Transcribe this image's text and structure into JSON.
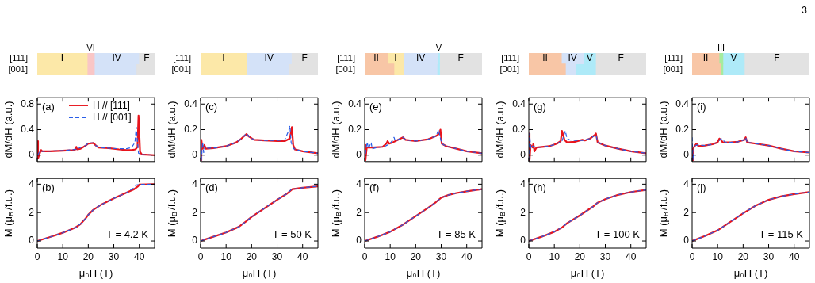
{
  "chart_data": [
    {
      "type": "bar",
      "orientation": "horizontal",
      "stacked": true,
      "categories": [
        "[111]",
        "[001]"
      ],
      "xlim": [
        0,
        46
      ],
      "tick_labels": "y",
      "annotations": [
        "3"
      ],
      "series": [
        {
          "name": "I",
          "color": "#fce8a8",
          "values": [
            19.6,
            19.6
          ]
        },
        {
          "name": "VI",
          "color": "#f9c6c6",
          "values": [
            2.8,
            2.8
          ]
        },
        {
          "name": "IV",
          "color": "#d4e2f8",
          "values": [
            17.4,
            16.4
          ]
        },
        {
          "name": "F",
          "color": "#e2e2e2",
          "values": [
            6.2,
            7.2
          ]
        }
      ]
    },
    {
      "type": "line",
      "xlim": [
        0,
        46
      ],
      "xticks": [
        0,
        10,
        20,
        30,
        40
      ],
      "ylim": [
        -0.1,
        0.9
      ],
      "yticks": [
        0,
        0.4,
        0.8
      ],
      "tick_labels": "y",
      "ylabel": "dM/dH (a.u.)",
      "annotations": [
        "(a)"
      ],
      "legend": "top right",
      "series": [
        {
          "name": "H // [111]",
          "color": "#e8141c",
          "line_style": "solid",
          "x": [
            0,
            0.3,
            1,
            1.5,
            2,
            5,
            10,
            14,
            15,
            15.3,
            15.6,
            17,
            19,
            20,
            22,
            23,
            24,
            28,
            32,
            35,
            37,
            38.5,
            39.3,
            39.7,
            40,
            40.3,
            41,
            46
          ],
          "values": [
            0.22,
            -0.05,
            0.03,
            0.08,
            0.06,
            0.06,
            0.07,
            0.08,
            0.09,
            0.13,
            0.09,
            0.1,
            0.15,
            0.18,
            0.19,
            0.15,
            0.12,
            0.11,
            0.09,
            0.08,
            0.08,
            0.09,
            0.13,
            0.62,
            0.35,
            0.05,
            0.01,
            0
          ]
        },
        {
          "name": "H // [001]",
          "color": "#2a5ee8",
          "line_style": "dashed",
          "x": [
            0,
            0.5,
            1,
            2,
            10,
            15,
            19,
            20,
            22,
            23,
            24,
            28,
            32,
            35,
            37,
            38.3,
            38.8,
            39.2,
            39.7,
            40.5,
            46
          ],
          "values": [
            0,
            0.02,
            0.07,
            0.06,
            0.07,
            0.09,
            0.15,
            0.19,
            0.19,
            0.15,
            0.12,
            0.11,
            0.1,
            0.1,
            0.12,
            0.2,
            0.44,
            0.25,
            0.03,
            0.01,
            0
          ]
        }
      ]
    },
    {
      "type": "line",
      "xlim": [
        0,
        46
      ],
      "xticks": [
        0,
        10,
        20,
        30,
        40
      ],
      "ylim": [
        -0.5,
        4.4
      ],
      "yticks": [
        0,
        2,
        4
      ],
      "xlabel": "μ₀H (T)",
      "ylabel": "M (μ$_{B}$/f.u.)",
      "annotations": [
        "(b)",
        "T = 4.2 K"
      ],
      "series": [
        {
          "color": "#e8141c",
          "line_style": "solid",
          "x": [
            0,
            5,
            10,
            15,
            17,
            19,
            20,
            22,
            25,
            30,
            35,
            38,
            39.5,
            40,
            46
          ],
          "values": [
            0,
            0.28,
            0.58,
            0.95,
            1.2,
            1.6,
            1.85,
            2.2,
            2.55,
            3,
            3.4,
            3.65,
            3.85,
            3.97,
            4
          ]
        },
        {
          "color": "#2a5ee8",
          "line_style": "dashed",
          "x": [
            0,
            5,
            10,
            15,
            17,
            19,
            20,
            22,
            25,
            30,
            35,
            38,
            39,
            40,
            46
          ],
          "values": [
            0,
            0.28,
            0.58,
            0.95,
            1.2,
            1.6,
            1.85,
            2.2,
            2.55,
            3,
            3.4,
            3.75,
            3.95,
            3.98,
            4
          ]
        }
      ]
    },
    {
      "type": "bar",
      "orientation": "horizontal",
      "stacked": true,
      "categories": [
        "[111]",
        "[001]"
      ],
      "xlim": [
        0,
        46
      ],
      "tick_labels": "y",
      "series": [
        {
          "name": "I",
          "color": "#fce8a8",
          "values": [
            18,
            18
          ]
        },
        {
          "name": "IV",
          "color": "#d4e2f8",
          "values": [
            17.6,
            16.7
          ]
        },
        {
          "name": "F",
          "color": "#e2e2e2",
          "values": [
            10.4,
            11.3
          ]
        }
      ]
    },
    {
      "type": "line",
      "xlim": [
        0,
        46
      ],
      "xticks": [
        0,
        10,
        20,
        30,
        40
      ],
      "ylim": [
        -0.05,
        0.45
      ],
      "yticks": [
        0,
        0.2,
        0.4
      ],
      "tick_labels": "y",
      "ylabel": "dM/dH (a.u.)",
      "annotations": [
        "(c)"
      ],
      "series": [
        {
          "color": "#e8141c",
          "line_style": "solid",
          "x": [
            0,
            0.3,
            0.8,
            1.5,
            2,
            5,
            10,
            14,
            16,
            18,
            19,
            21,
            25,
            30,
            33,
            35,
            35.8,
            36.3,
            37,
            40,
            46
          ],
          "values": [
            -0.04,
            0.12,
            0.05,
            0.08,
            0.05,
            0.055,
            0.07,
            0.1,
            0.13,
            0.165,
            0.145,
            0.12,
            0.115,
            0.11,
            0.11,
            0.13,
            0.22,
            0.08,
            0.045,
            0.03,
            0.015
          ]
        },
        {
          "color": "#2a5ee8",
          "line_style": "dashed",
          "x": [
            0,
            0.3,
            0.8,
            1.2,
            1.7,
            2.5,
            5,
            10,
            14,
            16,
            18,
            19,
            21,
            25,
            30,
            33,
            34.5,
            35,
            35.5,
            36.5,
            40,
            46
          ],
          "values": [
            0.21,
            -0.04,
            0.1,
            0.02,
            0.07,
            0.055,
            0.055,
            0.07,
            0.1,
            0.13,
            0.17,
            0.145,
            0.12,
            0.115,
            0.115,
            0.12,
            0.19,
            0.23,
            0.1,
            0.05,
            0.03,
            0.015
          ]
        }
      ]
    },
    {
      "type": "line",
      "xlim": [
        0,
        46
      ],
      "xticks": [
        0,
        10,
        20,
        30,
        40
      ],
      "ylim": [
        -0.5,
        4.4
      ],
      "yticks": [
        0,
        2,
        4
      ],
      "xlabel": "μ₀H (T)",
      "ylabel": "M (μ$_{B}$/f.u.)",
      "annotations": [
        "(d)",
        "T = 50 K"
      ],
      "series": [
        {
          "color": "#e8141c",
          "line_style": "solid",
          "x": [
            0,
            5,
            10,
            15,
            18,
            20,
            25,
            30,
            34,
            36,
            40,
            46
          ],
          "values": [
            0,
            0.3,
            0.6,
            1,
            1.4,
            1.7,
            2.3,
            2.9,
            3.35,
            3.65,
            3.75,
            3.85
          ]
        },
        {
          "color": "#2a5ee8",
          "line_style": "dashed",
          "x": [
            0,
            5,
            10,
            15,
            18,
            20,
            25,
            30,
            34,
            35.5,
            40,
            46
          ],
          "values": [
            0,
            0.3,
            0.6,
            1,
            1.4,
            1.7,
            2.3,
            2.9,
            3.35,
            3.62,
            3.75,
            3.85
          ]
        }
      ]
    },
    {
      "type": "bar",
      "orientation": "horizontal",
      "stacked": true,
      "categories": [
        "[111]",
        "[001]"
      ],
      "xlim": [
        0,
        46
      ],
      "tick_labels": "y",
      "series": [
        {
          "name": "II",
          "color": "#f8c6a6",
          "values": [
            9,
            11.5
          ]
        },
        {
          "name": "I",
          "color": "#fce8a8",
          "values": [
            6.2,
            3.7
          ]
        },
        {
          "name": "IV",
          "color": "#d4e2f8",
          "values": [
            13.5,
            13.2
          ]
        },
        {
          "name": "V",
          "color": "#aeeaf8",
          "values": [
            0.7,
            1
          ]
        },
        {
          "name": "F",
          "color": "#e2e2e2",
          "values": [
            16.6,
            16.6
          ]
        }
      ]
    },
    {
      "type": "line",
      "xlim": [
        0,
        46
      ],
      "xticks": [
        0,
        10,
        20,
        30,
        40
      ],
      "ylim": [
        -0.05,
        0.45
      ],
      "yticks": [
        0,
        0.2,
        0.4
      ],
      "tick_labels": "y",
      "ylabel": "dM/dH (a.u.)",
      "annotations": [
        "(e)"
      ],
      "series": [
        {
          "color": "#e8141c",
          "line_style": "solid",
          "x": [
            0,
            0.3,
            0.8,
            3,
            7,
            8.5,
            9,
            9.6,
            11,
            13,
            15,
            16,
            20,
            25,
            28,
            29.3,
            29.7,
            30.2,
            32,
            36,
            40,
            46
          ],
          "values": [
            0.08,
            -0.04,
            0.06,
            0.06,
            0.065,
            0.09,
            0.11,
            0.09,
            0.1,
            0.12,
            0.14,
            0.12,
            0.11,
            0.125,
            0.15,
            0.17,
            0.2,
            0.09,
            0.07,
            0.05,
            0.03,
            0.015
          ]
        },
        {
          "color": "#2a5ee8",
          "line_style": "dashed",
          "x": [
            0,
            0.5,
            1,
            1.5,
            2.5,
            3,
            5,
            8,
            10,
            11,
            11.5,
            12,
            13,
            15,
            16,
            20,
            25,
            28,
            29,
            29.5,
            30.2,
            32,
            36,
            40,
            46
          ],
          "values": [
            -0.04,
            0.05,
            0.1,
            0.05,
            0.1,
            0.05,
            0.06,
            0.07,
            0.09,
            0.12,
            0.14,
            0.11,
            0.12,
            0.14,
            0.12,
            0.11,
            0.125,
            0.15,
            0.2,
            0.15,
            0.09,
            0.07,
            0.05,
            0.03,
            0.015
          ]
        }
      ]
    },
    {
      "type": "line",
      "xlim": [
        0,
        46
      ],
      "xticks": [
        0,
        10,
        20,
        30,
        40
      ],
      "ylim": [
        -0.5,
        4.4
      ],
      "yticks": [
        0,
        2,
        4
      ],
      "xlabel": "μ₀H (T)",
      "ylabel": "M (μ$_{B}$/f.u.)",
      "annotations": [
        "(f)",
        "T = 85 K"
      ],
      "series": [
        {
          "color": "#e8141c",
          "line_style": "solid",
          "x": [
            0,
            5,
            10,
            15,
            20,
            25,
            28,
            30,
            33,
            36,
            40,
            46
          ],
          "values": [
            0,
            0.3,
            0.65,
            1.15,
            1.75,
            2.35,
            2.75,
            3.05,
            3.25,
            3.38,
            3.5,
            3.65
          ]
        },
        {
          "color": "#2a5ee8",
          "line_style": "dashed",
          "x": [
            0,
            5,
            10,
            15,
            20,
            25,
            28,
            30,
            33,
            36,
            40,
            46
          ],
          "values": [
            0,
            0.3,
            0.65,
            1.15,
            1.75,
            2.35,
            2.75,
            3.05,
            3.25,
            3.38,
            3.5,
            3.65
          ]
        }
      ]
    },
    {
      "type": "bar",
      "orientation": "horizontal",
      "stacked": true,
      "categories": [
        "[111]",
        "[001]"
      ],
      "xlim": [
        0,
        46
      ],
      "tick_labels": "y",
      "series": [
        {
          "name": "II",
          "color": "#f8c6a6",
          "values": [
            12.8,
            14.4
          ]
        },
        {
          "name": "IV",
          "color": "#d4e2f8",
          "values": [
            8.7,
            4.1
          ]
        },
        {
          "name": "V",
          "color": "#aeeaf8",
          "values": [
            4.7,
            7.7
          ]
        },
        {
          "name": "F",
          "color": "#e2e2e2",
          "values": [
            19.8,
            19.8
          ]
        }
      ]
    },
    {
      "type": "line",
      "xlim": [
        0,
        46
      ],
      "xticks": [
        0,
        10,
        20,
        30,
        40
      ],
      "ylim": [
        -0.05,
        0.45
      ],
      "yticks": [
        0,
        0.2,
        0.4
      ],
      "tick_labels": "y",
      "ylabel": "dM/dH (a.u.)",
      "annotations": [
        "(g)"
      ],
      "series": [
        {
          "color": "#e8141c",
          "line_style": "solid",
          "x": [
            0,
            0.3,
            0.7,
            1.5,
            1.8,
            2.2,
            3,
            8,
            11,
            12.5,
            13,
            14,
            15,
            18,
            21,
            22,
            24,
            26,
            26.3,
            27,
            30,
            35,
            40,
            46
          ],
          "values": [
            0.17,
            -0.04,
            0.08,
            0.06,
            0.09,
            0.03,
            0.06,
            0.07,
            0.09,
            0.11,
            0.19,
            0.12,
            0.1,
            0.105,
            0.12,
            0.115,
            0.13,
            0.16,
            0.17,
            0.1,
            0.075,
            0.05,
            0.03,
            0.015
          ]
        },
        {
          "color": "#2a5ee8",
          "line_style": "dashed",
          "x": [
            0,
            0.3,
            0.8,
            1.5,
            3,
            8,
            11,
            13,
            14.3,
            15,
            16,
            18,
            21,
            24,
            26,
            26.4,
            27,
            30,
            35,
            40,
            46
          ],
          "values": [
            -0.04,
            0.17,
            0.05,
            0.07,
            0.06,
            0.07,
            0.09,
            0.11,
            0.19,
            0.13,
            0.12,
            0.115,
            0.115,
            0.13,
            0.155,
            0.16,
            0.1,
            0.075,
            0.05,
            0.03,
            0.015
          ]
        }
      ]
    },
    {
      "type": "line",
      "xlim": [
        0,
        46
      ],
      "xticks": [
        0,
        10,
        20,
        30,
        40
      ],
      "ylim": [
        -0.5,
        4.4
      ],
      "yticks": [
        0,
        2,
        4
      ],
      "xlabel": "μ₀H (T)",
      "ylabel": "M (μ$_{B}$/f.u.)",
      "annotations": [
        "(h)",
        "T = 100 K"
      ],
      "series": [
        {
          "color": "#e8141c",
          "line_style": "solid",
          "x": [
            0,
            5,
            10,
            13,
            15,
            20,
            25,
            27,
            30,
            35,
            40,
            46
          ],
          "values": [
            0,
            0.3,
            0.65,
            0.95,
            1.25,
            1.8,
            2.4,
            2.7,
            2.95,
            3.25,
            3.45,
            3.6
          ]
        },
        {
          "color": "#2a5ee8",
          "line_style": "dashed",
          "x": [
            0,
            5,
            10,
            13,
            15,
            20,
            25,
            27,
            30,
            35,
            40,
            46
          ],
          "values": [
            0,
            0.3,
            0.65,
            0.95,
            1.25,
            1.8,
            2.4,
            2.7,
            2.95,
            3.25,
            3.45,
            3.6
          ]
        }
      ]
    },
    {
      "type": "bar",
      "orientation": "horizontal",
      "stacked": true,
      "categories": [
        "[111]",
        "[001]"
      ],
      "xlim": [
        0,
        46
      ],
      "tick_labels": "y",
      "series": [
        {
          "name": "II",
          "color": "#f8c6a6",
          "values": [
            10.6,
            11.3
          ]
        },
        {
          "name": "III",
          "color": "#a6ec9e",
          "values": [
            1.5,
            0.8
          ]
        },
        {
          "name": "V",
          "color": "#aeeaf8",
          "values": [
            8.4,
            8.4
          ]
        },
        {
          "name": "F",
          "color": "#e2e2e2",
          "values": [
            25.5,
            25.5
          ]
        }
      ]
    },
    {
      "type": "line",
      "xlim": [
        0,
        46
      ],
      "xticks": [
        0,
        10,
        20,
        30,
        40
      ],
      "ylim": [
        -0.05,
        0.45
      ],
      "yticks": [
        0,
        0.2,
        0.4
      ],
      "tick_labels": "y",
      "ylabel": "dM/dH (a.u.)",
      "annotations": [
        "(i)"
      ],
      "series": [
        {
          "color": "#e8141c",
          "line_style": "solid",
          "x": [
            0,
            0.3,
            1,
            1.7,
            2.5,
            5,
            8,
            10,
            10.7,
            11.3,
            12,
            15,
            18,
            20.5,
            21,
            21.6,
            25,
            30,
            35,
            40,
            46
          ],
          "values": [
            -0.04,
            0.05,
            0.07,
            0.09,
            0.07,
            0.075,
            0.085,
            0.1,
            0.13,
            0.12,
            0.1,
            0.1,
            0.105,
            0.12,
            0.14,
            0.1,
            0.09,
            0.075,
            0.05,
            0.03,
            0.02
          ]
        },
        {
          "color": "#2a5ee8",
          "line_style": "dashed",
          "x": [
            0,
            0.3,
            0.8,
            2,
            5,
            8,
            10,
            11.3,
            12,
            13,
            15,
            18,
            20.5,
            21,
            21.6,
            25,
            30,
            35,
            40,
            46
          ],
          "values": [
            0.14,
            -0.04,
            0.07,
            0.08,
            0.075,
            0.085,
            0.1,
            0.13,
            0.12,
            0.1,
            0.1,
            0.105,
            0.12,
            0.14,
            0.1,
            0.09,
            0.075,
            0.05,
            0.03,
            0.02
          ]
        }
      ]
    },
    {
      "type": "line",
      "xlim": [
        0,
        46
      ],
      "xticks": [
        0,
        10,
        20,
        30,
        40
      ],
      "ylim": [
        -0.5,
        4.4
      ],
      "yticks": [
        0,
        2,
        4
      ],
      "xlabel": "μ₀H (T)",
      "ylabel": "M (μ$_{B}$/f.u.)",
      "annotations": [
        "(j)",
        "T = 115 K"
      ],
      "series": [
        {
          "color": "#e8141c",
          "line_style": "solid",
          "x": [
            0,
            5,
            10,
            15,
            20,
            25,
            30,
            35,
            40,
            46
          ],
          "values": [
            0,
            0.35,
            0.75,
            1.35,
            1.95,
            2.5,
            2.9,
            3.15,
            3.3,
            3.45
          ]
        },
        {
          "color": "#2a5ee8",
          "line_style": "dashed",
          "x": [
            0,
            5,
            10,
            15,
            20,
            25,
            30,
            35,
            40,
            46
          ],
          "values": [
            0,
            0.35,
            0.75,
            1.35,
            1.95,
            2.5,
            2.9,
            3.15,
            3.3,
            3.45
          ]
        }
      ]
    }
  ]
}
